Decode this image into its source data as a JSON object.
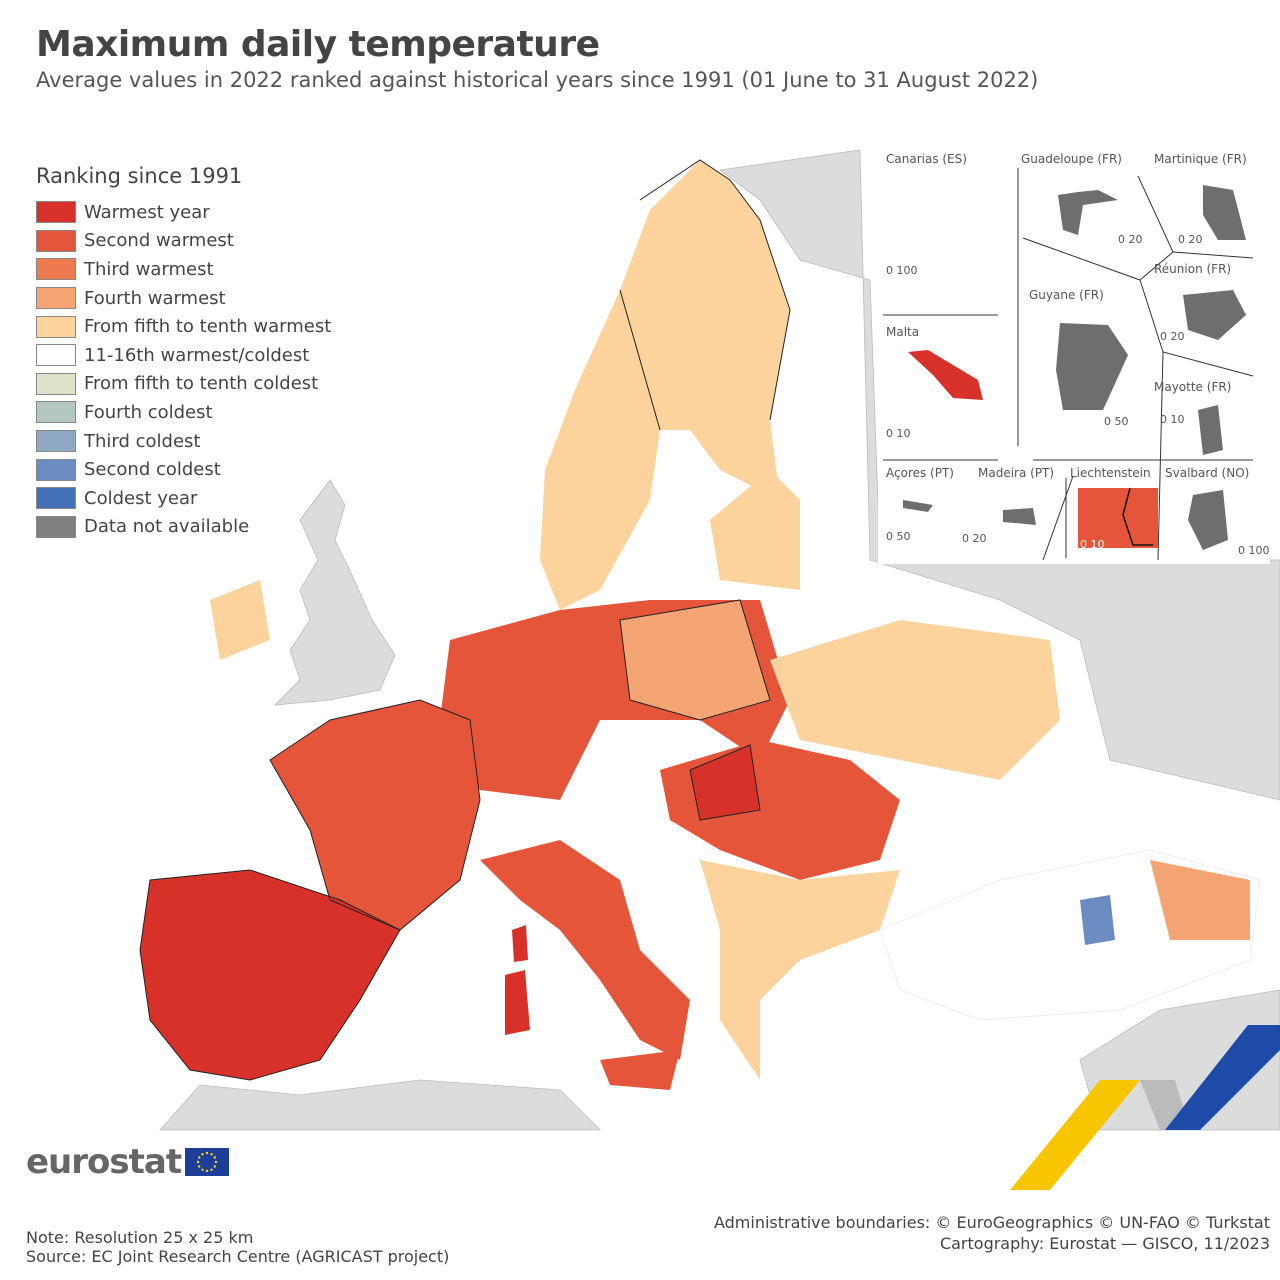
{
  "header": {
    "title": "Maximum daily temperature",
    "subtitle": "Average values in 2022 ranked against historical years since 1991 (01 June to 31 August 2022)"
  },
  "legend": {
    "title": "Ranking since 1991",
    "items": [
      {
        "label": "Warmest year",
        "color": "#d7312a"
      },
      {
        "label": "Second warmest",
        "color": "#e4553a"
      },
      {
        "label": "Third warmest",
        "color": "#ee7a50"
      },
      {
        "label": "Fourth warmest",
        "color": "#f5a574"
      },
      {
        "label": "From fifth to tenth warmest",
        "color": "#fcd39d"
      },
      {
        "label": "11-16th warmest/coldest",
        "color": "#ffffff"
      },
      {
        "label": "From fifth to tenth coldest",
        "color": "#dde3c8"
      },
      {
        "label": "Fourth coldest",
        "color": "#b4c6c0"
      },
      {
        "label": "Third coldest",
        "color": "#8fa9c2"
      },
      {
        "label": "Second coldest",
        "color": "#6b8cc0"
      },
      {
        "label": "Coldest year",
        "color": "#4470b8"
      },
      {
        "label": "Data not available",
        "color": "#808080"
      }
    ]
  },
  "insets": [
    {
      "label": "Canarias (ES)",
      "scale": "0 100"
    },
    {
      "label": "Guadeloupe (FR)",
      "scale": "0 20"
    },
    {
      "label": "Martinique (FR)",
      "scale": "0 20"
    },
    {
      "label": "Réunion (FR)",
      "scale": "0 20"
    },
    {
      "label": "Guyane (FR)",
      "scale": "0 50"
    },
    {
      "label": "Malta",
      "scale": "0 10"
    },
    {
      "label": "Mayotte (FR)",
      "scale": "0 10"
    },
    {
      "label": "Açores (PT)",
      "scale": "0 50"
    },
    {
      "label": "Madeira (PT)",
      "scale": "0 20"
    },
    {
      "label": "Liechtenstein",
      "scale": "0 10"
    },
    {
      "label": "Svalbard (NO)",
      "scale": "0 100"
    }
  ],
  "footer": {
    "logo": "eurostat",
    "note": "Note: Resolution 25 x 25 km",
    "source": "Source: EC Joint Research Centre (AGRICAST project)",
    "boundaries": "Administrative boundaries: © EuroGeographics © UN-FAO © Turkstat",
    "cartography": "Cartography: Eurostat — GISCO, 11/2023"
  }
}
